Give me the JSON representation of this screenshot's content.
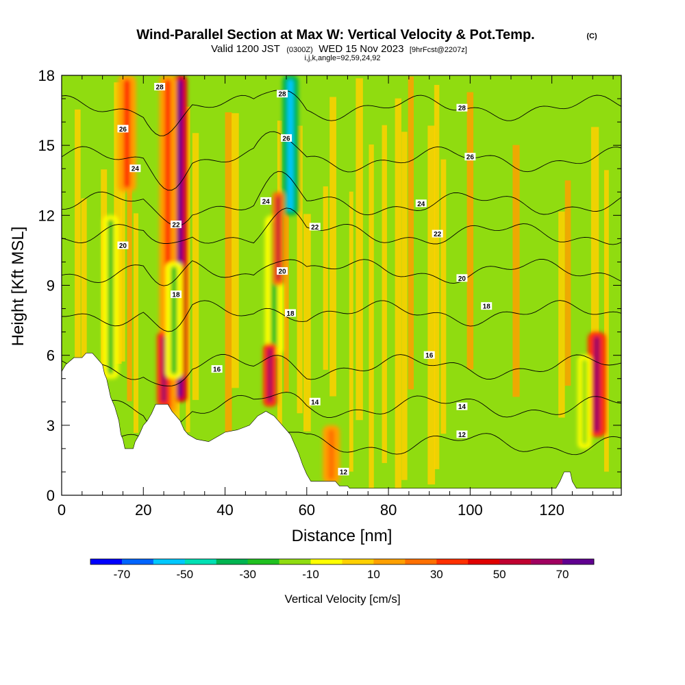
{
  "chart_data": {
    "type": "heatmap",
    "title": "Wind-Parallel Section at Max W: Vertical Velocity & Pot.Temp.",
    "title_mark": "(C)",
    "subtitle_prefix": "Valid 1200 JST",
    "subtitle_utc": "(0300Z)",
    "subtitle_date": "WED 15 Nov 2023",
    "subtitle_fcst": "[9hrFcst@2207z]",
    "subtitle_ijk": "i,j,k,angle=92,59,24,92",
    "xlabel": "Distance [nm]",
    "ylabel": "Height [Kft MSL]",
    "xlim": [
      0,
      137
    ],
    "ylim": [
      0,
      18
    ],
    "x_ticks": [
      0,
      20,
      40,
      60,
      80,
      100,
      120
    ],
    "y_ticks": [
      0,
      3,
      6,
      9,
      12,
      15,
      18
    ],
    "colorbar": {
      "label": "Vertical Velocity [cm/s]",
      "tick_values": [
        -70,
        -50,
        -30,
        -10,
        10,
        30,
        50,
        70
      ],
      "range": [
        -80,
        80
      ],
      "step": 10,
      "colors": [
        "#0000ff",
        "#0064ff",
        "#00c8ff",
        "#00e0b4",
        "#00b450",
        "#20c020",
        "#90dc10",
        "#ffff00",
        "#ffd000",
        "#ffa000",
        "#ff7000",
        "#ff3000",
        "#e00000",
        "#c00030",
        "#a00060",
        "#600090"
      ]
    },
    "background_color": "#90dc10",
    "velocity_features": [
      {
        "x": 29,
        "y_range": [
          4,
          18
        ],
        "w": 70,
        "width_nm": 1.2
      },
      {
        "x": 26,
        "y_range": [
          3.5,
          18
        ],
        "w": 30,
        "width_nm": 1.5
      },
      {
        "x": 25,
        "y_range": [
          3.8,
          7
        ],
        "w": 60,
        "width_nm": 1.2
      },
      {
        "x": 27.5,
        "y_range": [
          5,
          10
        ],
        "w": -30,
        "width_nm": 1.5
      },
      {
        "x": 56,
        "y_range": [
          12,
          18
        ],
        "w": -60,
        "width_nm": 1.4
      },
      {
        "x": 52,
        "y_range": [
          6,
          12
        ],
        "w": -30,
        "width_nm": 1.6
      },
      {
        "x": 51,
        "y_range": [
          3.8,
          6.5
        ],
        "w": 60,
        "width_nm": 1.2
      },
      {
        "x": 53,
        "y_range": [
          9,
          13
        ],
        "w": 50,
        "width_nm": 1.0
      },
      {
        "x": 16,
        "y_range": [
          13,
          18
        ],
        "w": 35,
        "width_nm": 1.6
      },
      {
        "x": 12,
        "y_range": [
          5,
          12
        ],
        "w": -30,
        "width_nm": 1.4
      },
      {
        "x": 131,
        "y_range": [
          2.5,
          7
        ],
        "w": 60,
        "width_nm": 1.6
      },
      {
        "x": 128,
        "y_range": [
          2,
          6
        ],
        "w": -20,
        "width_nm": 1.2
      },
      {
        "x": 66,
        "y_range": [
          0.5,
          3
        ],
        "w": 20,
        "width_nm": 1.5
      }
    ],
    "terrain": [
      [
        0,
        5.3
      ],
      [
        1,
        5.6
      ],
      [
        3,
        5.9
      ],
      [
        5,
        5.9
      ],
      [
        6,
        6.1
      ],
      [
        7.5,
        6.1
      ],
      [
        8.5,
        5.9
      ],
      [
        10,
        5.6
      ],
      [
        10.5,
        5.2
      ],
      [
        11,
        5
      ],
      [
        11.5,
        4.6
      ],
      [
        12,
        4.2
      ],
      [
        13,
        3.8
      ],
      [
        14,
        3.2
      ],
      [
        14.5,
        2.6
      ],
      [
        15,
        2.4
      ],
      [
        15.5,
        2.0
      ],
      [
        17.5,
        2.0
      ],
      [
        18,
        2.3
      ],
      [
        19,
        2.6
      ],
      [
        20,
        3.0
      ],
      [
        21,
        3.2
      ],
      [
        22,
        3.5
      ],
      [
        23,
        3.9
      ],
      [
        26,
        3.9
      ],
      [
        27,
        3.6
      ],
      [
        29,
        3.2
      ],
      [
        30,
        2.8
      ],
      [
        31,
        2.6
      ],
      [
        33,
        2.4
      ],
      [
        36,
        2.3
      ],
      [
        38,
        2.5
      ],
      [
        40,
        2.7
      ],
      [
        43,
        2.8
      ],
      [
        46,
        3.0
      ],
      [
        48,
        3.4
      ],
      [
        50,
        3.6
      ],
      [
        52,
        3.4
      ],
      [
        54,
        3.0
      ],
      [
        56,
        2.6
      ],
      [
        57,
        2.2
      ],
      [
        58,
        1.8
      ],
      [
        59,
        1.3
      ],
      [
        60,
        0.9
      ],
      [
        61,
        0.6
      ],
      [
        62,
        0.6
      ],
      [
        65,
        0.6
      ],
      [
        67,
        0.6
      ],
      [
        68,
        0.4
      ],
      [
        70,
        0.4
      ],
      [
        70.5,
        0.3
      ],
      [
        121,
        0.3
      ],
      [
        122,
        0.6
      ],
      [
        123,
        1.0
      ],
      [
        124.5,
        1.0
      ],
      [
        125,
        0.6
      ],
      [
        126,
        0.3
      ],
      [
        137,
        0.3
      ]
    ],
    "theta_contours": [
      {
        "label": "12",
        "label_at": [
          [
            69,
            1
          ],
          [
            98,
            2.6
          ]
        ],
        "y0": 2.2
      },
      {
        "label": "14",
        "label_at": [
          [
            62,
            4
          ],
          [
            98,
            3.8
          ]
        ],
        "y0": 3.8
      },
      {
        "label": "16",
        "label_at": [
          [
            38,
            5.4
          ],
          [
            90,
            6
          ]
        ],
        "y0": 5.5
      },
      {
        "label": "18",
        "label_at": [
          [
            28,
            8.6
          ],
          [
            56,
            7.8
          ],
          [
            104,
            8.1
          ]
        ],
        "y0": 7.8
      },
      {
        "label": "20",
        "label_at": [
          [
            15,
            10.7
          ],
          [
            54,
            9.6
          ],
          [
            98,
            9.3
          ]
        ],
        "y0": 9.6
      },
      {
        "label": "22",
        "label_at": [
          [
            28,
            11.6
          ],
          [
            62,
            11.5
          ],
          [
            92,
            11.2
          ]
        ],
        "y0": 11.2
      },
      {
        "label": "24",
        "label_at": [
          [
            18,
            14
          ],
          [
            50,
            12.6
          ],
          [
            88,
            12.5
          ]
        ],
        "y0": 12.5
      },
      {
        "label": "26",
        "label_at": [
          [
            15,
            15.7
          ],
          [
            55,
            15.3
          ],
          [
            100,
            14.5
          ]
        ],
        "y0": 14.4
      },
      {
        "label": "28",
        "label_at": [
          [
            24,
            17.5
          ],
          [
            54,
            17.2
          ],
          [
            98,
            16.6
          ]
        ],
        "y0": 16.6
      }
    ]
  }
}
